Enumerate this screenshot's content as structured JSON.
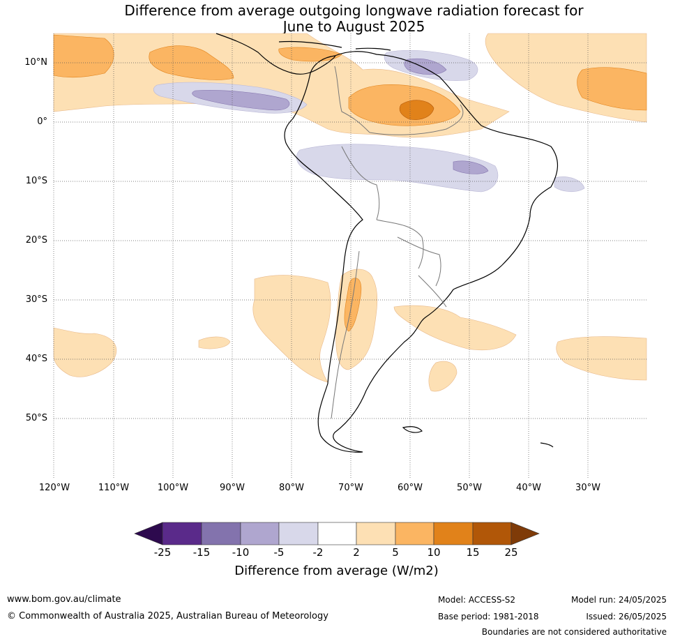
{
  "title_line1": "Difference from average outgoing longwave radiation forecast for",
  "title_line2": "June to August 2025",
  "lat_labels": [
    "10°N",
    "0°",
    "10°S",
    "20°S",
    "30°S",
    "40°S",
    "50°S"
  ],
  "lon_labels": [
    "120°W",
    "110°W",
    "100°W",
    "90°W",
    "80°W",
    "70°W",
    "60°W",
    "50°W",
    "40°W",
    "30°W"
  ],
  "colorbar": {
    "ticks": [
      "-25",
      "-15",
      "-10",
      "-5",
      "-2",
      "2",
      "5",
      "10",
      "15",
      "25"
    ],
    "colors": [
      "#2d0a4e",
      "#5a2a8a",
      "#8373ad",
      "#afa6cf",
      "#d8d8ea",
      "#ffffff",
      "#fde0b4",
      "#fbb562",
      "#e1821a",
      "#b15708",
      "#7f3b08"
    ],
    "title": "Difference from average (W/m2)"
  },
  "footer": {
    "website": "www.bom.gov.au/climate",
    "copyright": "© Commonwealth of Australia 2025, Australian Bureau of Meteorology",
    "model": "Model: ACCESS-S2",
    "base_period": "Base period: 1981-2018",
    "model_run": "Model run: 24/05/2025",
    "issued": "Issued: 26/05/2025",
    "disclaimer": "Boundaries are not considered authoritative"
  }
}
